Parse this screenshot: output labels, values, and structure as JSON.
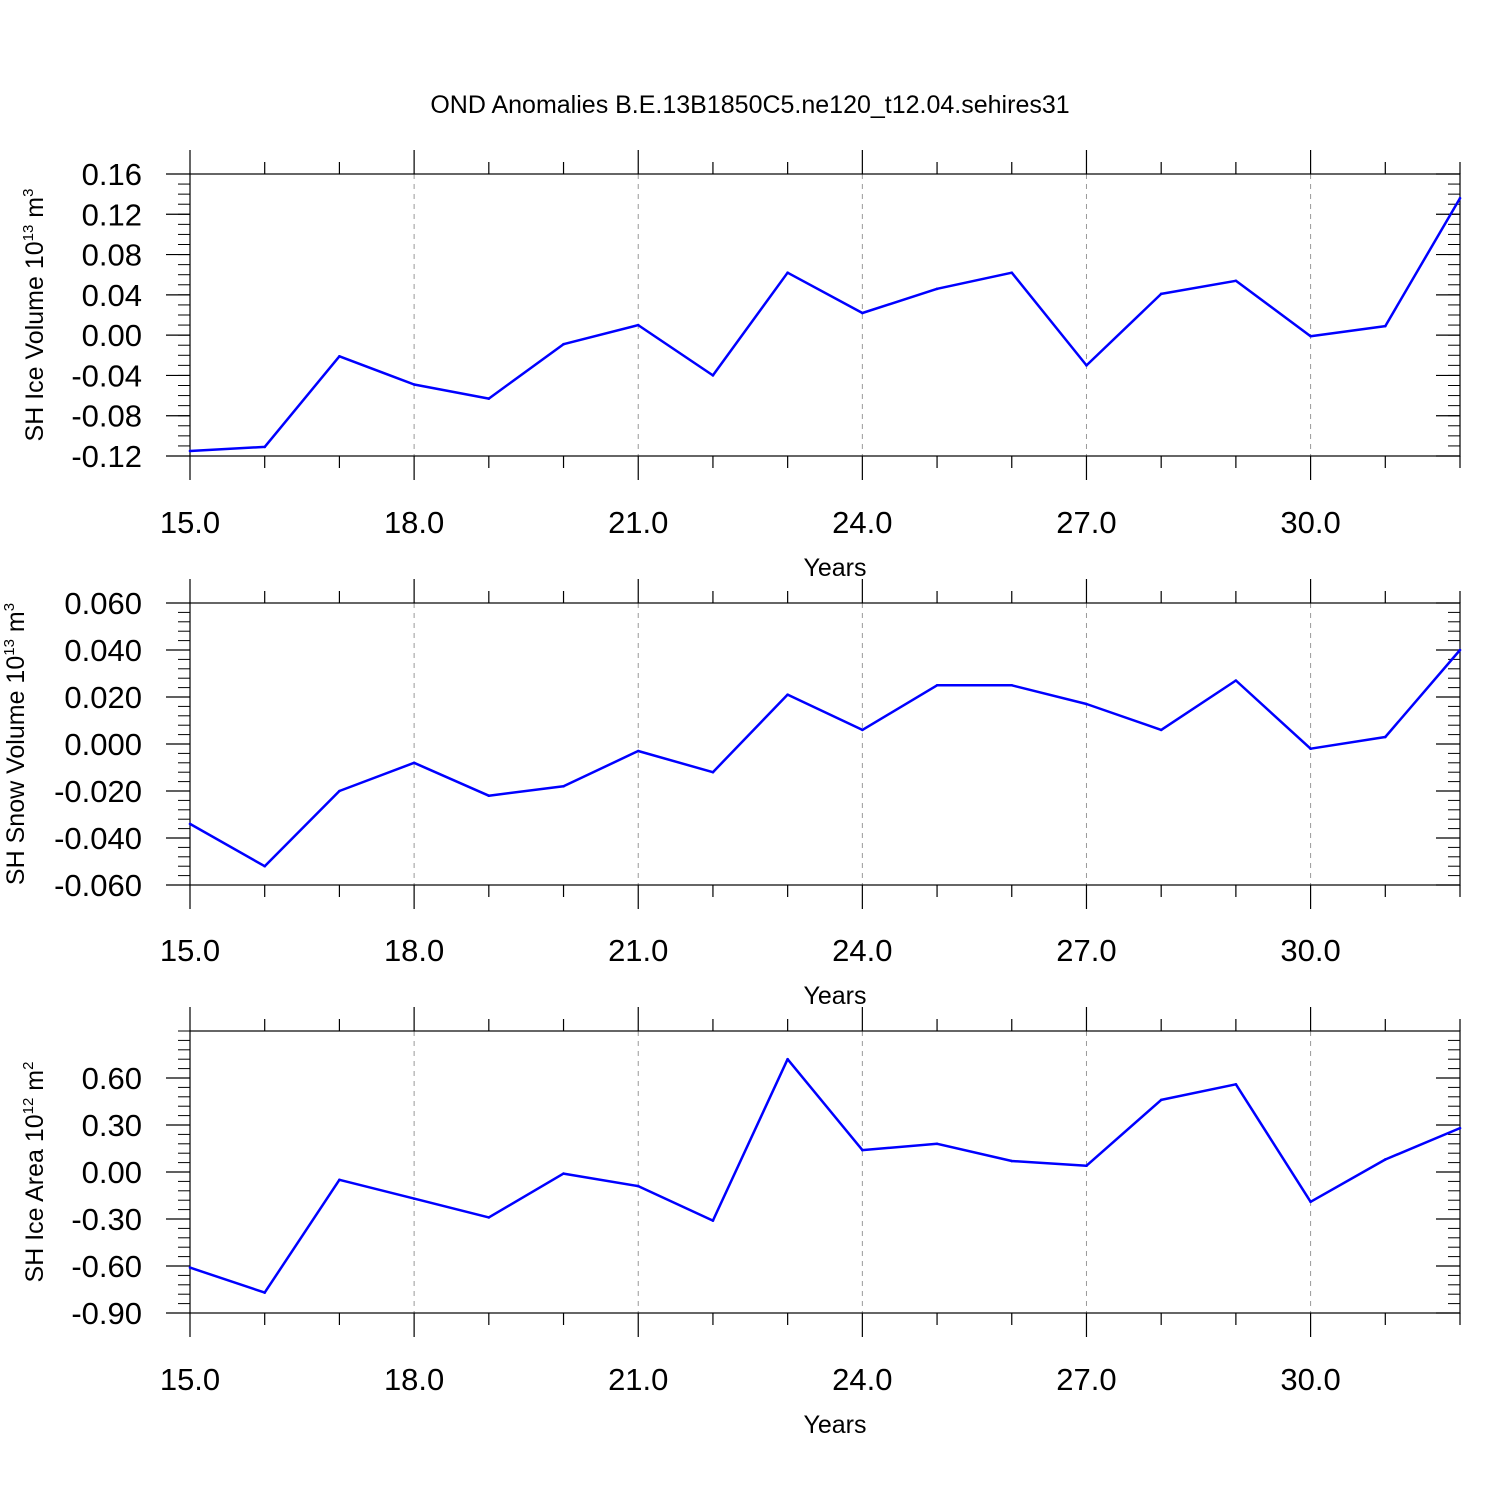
{
  "figure": {
    "title": "OND Anomalies B.E.13B1850C5.ne120_t12.04.sehires31"
  },
  "chart_data": [
    {
      "type": "line",
      "xlabel": "Years",
      "ylabel_text": "SH Ice Volume ",
      "ylabel_unit_base": "10",
      "ylabel_unit_exp": "13",
      "ylabel_unit_tail": " m",
      "ylabel_unit_tail_exp": "3",
      "xlim": [
        15,
        32
      ],
      "ylim": [
        -0.12,
        0.16
      ],
      "xticks": [
        "15.0",
        "18.0",
        "21.0",
        "24.0",
        "27.0",
        "30.0"
      ],
      "xtick_values": [
        15,
        18,
        21,
        24,
        27,
        30
      ],
      "yticks": [
        "0.16",
        "0.12",
        "0.08",
        "0.04",
        "0.00",
        "-0.04",
        "-0.08",
        "-0.12"
      ],
      "ytick_values": [
        0.16,
        0.12,
        0.08,
        0.04,
        0.0,
        -0.04,
        -0.08,
        -0.12
      ],
      "grid": "vertical dashed at major x ticks",
      "color": "#0000ff",
      "x": [
        15,
        16,
        17,
        18,
        19,
        20,
        21,
        22,
        23,
        24,
        25,
        26,
        27,
        28,
        29,
        30,
        31,
        32
      ],
      "values": [
        -0.115,
        -0.111,
        -0.021,
        -0.049,
        -0.063,
        -0.009,
        0.01,
        -0.04,
        0.062,
        0.022,
        0.046,
        0.062,
        -0.03,
        0.041,
        0.054,
        -0.001,
        0.009,
        0.136
      ]
    },
    {
      "type": "line",
      "xlabel": "Years",
      "ylabel_text": "SH Snow Volume ",
      "ylabel_unit_base": "10",
      "ylabel_unit_exp": "13",
      "ylabel_unit_tail": " m",
      "ylabel_unit_tail_exp": "3",
      "xlim": [
        15,
        32
      ],
      "ylim": [
        -0.06,
        0.06
      ],
      "xticks": [
        "15.0",
        "18.0",
        "21.0",
        "24.0",
        "27.0",
        "30.0"
      ],
      "xtick_values": [
        15,
        18,
        21,
        24,
        27,
        30
      ],
      "yticks": [
        "0.060",
        "0.040",
        "0.020",
        "0.000",
        "-0.020",
        "-0.040",
        "-0.060"
      ],
      "ytick_values": [
        0.06,
        0.04,
        0.02,
        0.0,
        -0.02,
        -0.04,
        -0.06
      ],
      "grid": "vertical dashed at major x ticks",
      "color": "#0000ff",
      "x": [
        15,
        16,
        17,
        18,
        19,
        20,
        21,
        22,
        23,
        24,
        25,
        26,
        27,
        28,
        29,
        30,
        31,
        32
      ],
      "values": [
        -0.034,
        -0.052,
        -0.02,
        -0.008,
        -0.022,
        -0.018,
        -0.003,
        -0.012,
        0.021,
        0.006,
        0.025,
        0.025,
        0.017,
        0.006,
        0.027,
        -0.002,
        0.003,
        0.04
      ]
    },
    {
      "type": "line",
      "xlabel": "Years",
      "ylabel_text": "SH Ice Area ",
      "ylabel_unit_base": "10",
      "ylabel_unit_exp": "12",
      "ylabel_unit_tail": " m",
      "ylabel_unit_tail_exp": "2",
      "xlim": [
        15,
        32
      ],
      "ylim": [
        -0.9,
        0.9
      ],
      "xticks": [
        "15.0",
        "18.0",
        "21.0",
        "24.0",
        "27.0",
        "30.0"
      ],
      "xtick_values": [
        15,
        18,
        21,
        24,
        27,
        30
      ],
      "yticks": [
        "0.60",
        "0.30",
        "0.00",
        "-0.30",
        "-0.60",
        "-0.90"
      ],
      "ytick_values": [
        0.6,
        0.3,
        0.0,
        -0.3,
        -0.6,
        -0.9
      ],
      "grid": "vertical dashed at major x ticks",
      "color": "#0000ff",
      "x": [
        15,
        16,
        17,
        18,
        19,
        20,
        21,
        22,
        23,
        24,
        25,
        26,
        27,
        28,
        29,
        30,
        31,
        32
      ],
      "values": [
        -0.61,
        -0.77,
        -0.05,
        -0.17,
        -0.29,
        -0.01,
        -0.09,
        -0.31,
        0.72,
        0.14,
        0.18,
        0.07,
        0.04,
        0.46,
        0.56,
        -0.19,
        0.08,
        0.28
      ]
    }
  ]
}
